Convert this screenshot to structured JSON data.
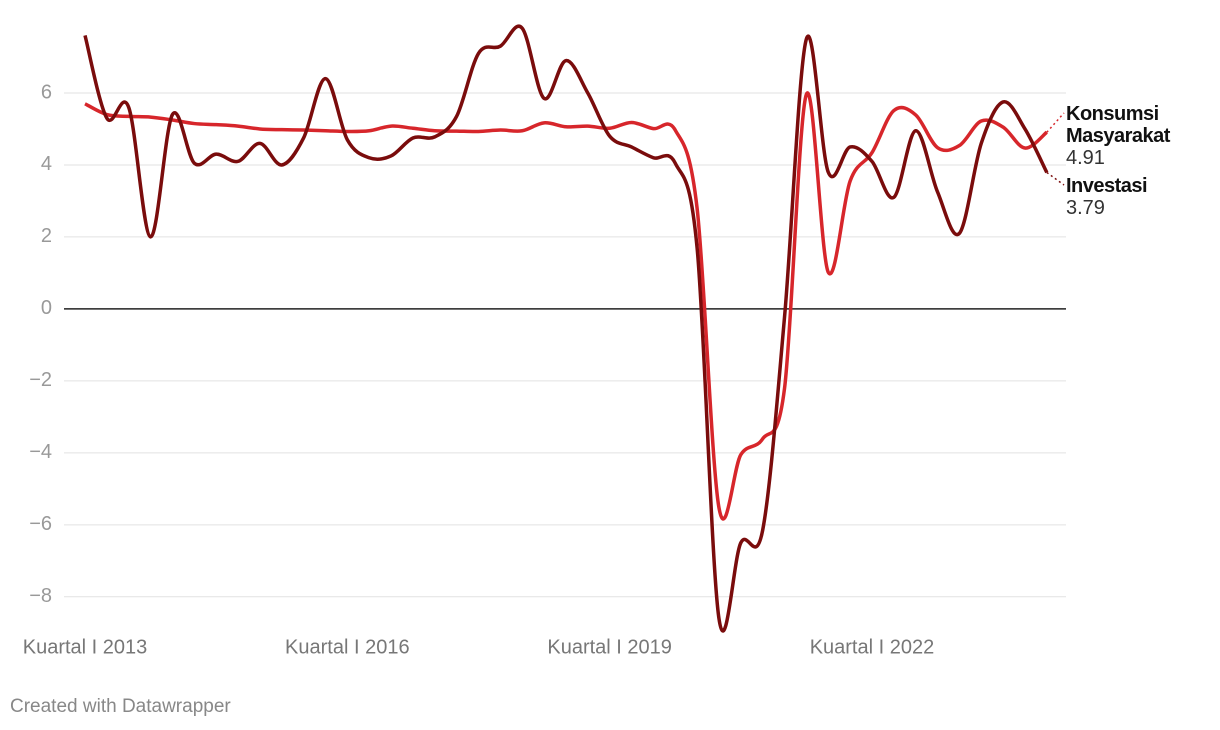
{
  "chart_data": {
    "type": "line",
    "categories": [
      "Kuartal I 2013",
      null,
      null,
      null,
      null,
      null,
      null,
      null,
      null,
      null,
      null,
      null,
      "Kuartal I 2016",
      null,
      null,
      null,
      null,
      null,
      null,
      null,
      null,
      null,
      null,
      null,
      "Kuartal I 2019",
      null,
      null,
      null,
      null,
      null,
      null,
      null,
      null,
      null,
      null,
      null,
      "Kuartal I 2022",
      null,
      null,
      null,
      null,
      null,
      null,
      null,
      null
    ],
    "series": [
      {
        "name": "Konsumsi Masyarakat",
        "color": "#d7262b",
        "values": [
          5.7,
          5.4,
          5.35,
          5.33,
          5.25,
          5.15,
          5.12,
          5.08,
          5.0,
          4.98,
          4.97,
          4.95,
          4.93,
          4.95,
          5.08,
          5.02,
          4.95,
          4.94,
          4.93,
          4.97,
          4.95,
          5.17,
          5.06,
          5.08,
          5.02,
          5.18,
          5.01,
          4.97,
          2.8,
          -5.52,
          -4.05,
          -3.61,
          -2.21,
          5.96,
          1.02,
          3.55,
          4.34,
          5.51,
          5.39,
          4.48,
          4.54,
          5.22,
          5.05,
          4.47,
          4.91
        ]
      },
      {
        "name": "Investasi",
        "color": "#7a0c0c",
        "values": [
          7.6,
          5.3,
          5.6,
          2.0,
          5.4,
          4.05,
          4.3,
          4.1,
          4.6,
          4.0,
          4.75,
          6.4,
          4.7,
          4.2,
          4.25,
          4.75,
          4.78,
          5.35,
          7.1,
          7.3,
          7.8,
          5.85,
          6.9,
          6.0,
          4.8,
          4.5,
          4.2,
          4.05,
          1.7,
          -8.6,
          -6.5,
          -6.15,
          -0.23,
          7.5,
          3.8,
          4.5,
          4.1,
          3.1,
          4.95,
          3.25,
          2.1,
          4.6,
          5.75,
          5.0,
          3.79
        ]
      }
    ],
    "ylim": [
      -8.7,
      8
    ],
    "yticks": [
      {
        "value": -8,
        "label": "−8"
      },
      {
        "value": -6,
        "label": "−6"
      },
      {
        "value": -4,
        "label": "−4"
      },
      {
        "value": -2,
        "label": "−2"
      },
      0,
      2,
      4,
      6
    ],
    "grid": true,
    "footer": "Created with Datawrapper"
  }
}
